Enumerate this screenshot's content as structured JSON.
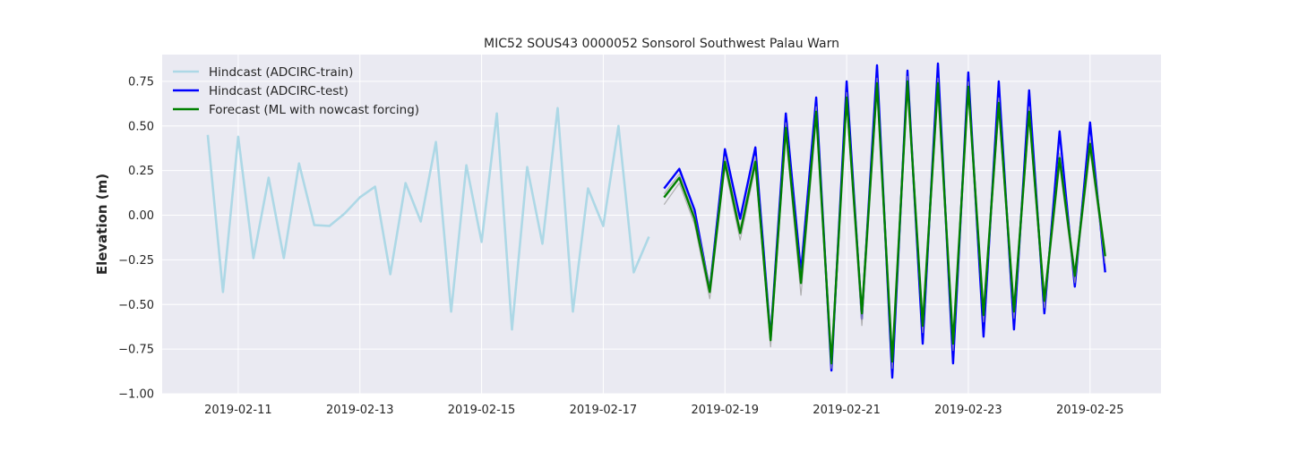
{
  "chart_data": {
    "type": "line",
    "title": "MIC52 SOUS43 0000052 Sonsorol Southwest Palau Warn",
    "xlabel": "",
    "ylabel": "Elevation (m)",
    "xlim": [
      "2019-02-09T18:00",
      "2019-02-26T04:00"
    ],
    "ylim": [
      -1.0,
      0.9
    ],
    "yticks": [
      -1.0,
      -0.75,
      -0.5,
      -0.25,
      0.0,
      0.25,
      0.5,
      0.75
    ],
    "ytick_labels": [
      "−1.00",
      "−0.75",
      "−0.50",
      "−0.25",
      "0.00",
      "0.25",
      "0.50",
      "0.75"
    ],
    "xticks": [
      "2019-02-11",
      "2019-02-13",
      "2019-02-15",
      "2019-02-17",
      "2019-02-19",
      "2019-02-21",
      "2019-02-23",
      "2019-02-25"
    ],
    "grid": true,
    "legend_position": "upper-left",
    "colors": {
      "background": "#eaeaf2",
      "grid": "#ffffff",
      "train": "#add8e6",
      "test": "#0000ff",
      "forecast": "#008000",
      "ensemble": "#a0a0a0"
    },
    "series": [
      {
        "name": "Hindcast (ADCIRC-train)",
        "color": "#add8e6",
        "x": [
          "2019-02-10T12:00",
          "2019-02-10T18:00",
          "2019-02-11T00:00",
          "2019-02-11T06:00",
          "2019-02-11T12:00",
          "2019-02-11T18:00",
          "2019-02-12T00:00",
          "2019-02-12T06:00",
          "2019-02-12T12:00",
          "2019-02-12T18:00",
          "2019-02-13T00:00",
          "2019-02-13T06:00",
          "2019-02-13T12:00",
          "2019-02-13T18:00",
          "2019-02-14T00:00",
          "2019-02-14T06:00",
          "2019-02-14T12:00",
          "2019-02-14T18:00",
          "2019-02-15T00:00",
          "2019-02-15T06:00",
          "2019-02-15T12:00",
          "2019-02-15T18:00",
          "2019-02-16T00:00",
          "2019-02-16T06:00",
          "2019-02-16T12:00",
          "2019-02-16T18:00",
          "2019-02-17T00:00",
          "2019-02-17T06:00",
          "2019-02-17T12:00",
          "2019-02-17T18:00"
        ],
        "values": [
          0.45,
          -0.43,
          0.44,
          -0.24,
          0.21,
          -0.24,
          0.29,
          -0.055,
          -0.06,
          0.01,
          0.1,
          0.16,
          -0.33,
          0.18,
          -0.035,
          0.41,
          -0.54,
          0.28,
          -0.15,
          0.57,
          -0.64,
          0.27,
          -0.16,
          0.6,
          -0.54,
          0.15,
          -0.06,
          0.5,
          -0.32,
          -0.12
        ]
      },
      {
        "name": "Hindcast (ADCIRC-test)",
        "color": "#0000ff",
        "x": [
          "2019-02-18T00:00",
          "2019-02-18T06:00",
          "2019-02-18T12:00",
          "2019-02-18T18:00",
          "2019-02-19T00:00",
          "2019-02-19T06:00",
          "2019-02-19T12:00",
          "2019-02-19T18:00",
          "2019-02-20T00:00",
          "2019-02-20T06:00",
          "2019-02-20T12:00",
          "2019-02-20T18:00",
          "2019-02-21T00:00",
          "2019-02-21T06:00",
          "2019-02-21T12:00",
          "2019-02-21T18:00",
          "2019-02-22T00:00",
          "2019-02-22T06:00",
          "2019-02-22T12:00",
          "2019-02-22T18:00",
          "2019-02-23T00:00",
          "2019-02-23T06:00",
          "2019-02-23T12:00",
          "2019-02-23T18:00",
          "2019-02-24T00:00",
          "2019-02-24T06:00",
          "2019-02-24T12:00",
          "2019-02-24T18:00",
          "2019-02-25T00:00",
          "2019-02-25T06:00"
        ],
        "values": [
          0.15,
          0.26,
          0.03,
          -0.42,
          0.37,
          -0.02,
          0.38,
          -0.69,
          0.57,
          -0.32,
          0.66,
          -0.87,
          0.75,
          -0.58,
          0.84,
          -0.91,
          0.81,
          -0.72,
          0.85,
          -0.83,
          0.8,
          -0.68,
          0.75,
          -0.64,
          0.7,
          -0.55,
          0.47,
          -0.4,
          0.52,
          -0.32
        ]
      },
      {
        "name": "Forecast (ML with nowcast forcing)",
        "color": "#008000",
        "x": [
          "2019-02-18T00:00",
          "2019-02-18T06:00",
          "2019-02-18T12:00",
          "2019-02-18T18:00",
          "2019-02-19T00:00",
          "2019-02-19T06:00",
          "2019-02-19T12:00",
          "2019-02-19T18:00",
          "2019-02-20T00:00",
          "2019-02-20T06:00",
          "2019-02-20T12:00",
          "2019-02-20T18:00",
          "2019-02-21T00:00",
          "2019-02-21T06:00",
          "2019-02-21T12:00",
          "2019-02-21T18:00",
          "2019-02-22T00:00",
          "2019-02-22T06:00",
          "2019-02-22T12:00",
          "2019-02-22T18:00",
          "2019-02-23T00:00",
          "2019-02-23T06:00",
          "2019-02-23T12:00",
          "2019-02-23T18:00",
          "2019-02-24T00:00",
          "2019-02-24T06:00",
          "2019-02-24T12:00",
          "2019-02-24T18:00",
          "2019-02-25T00:00",
          "2019-02-25T06:00"
        ],
        "values": [
          0.1,
          0.21,
          -0.02,
          -0.43,
          0.3,
          -0.1,
          0.3,
          -0.7,
          0.49,
          -0.38,
          0.58,
          -0.83,
          0.66,
          -0.55,
          0.74,
          -0.82,
          0.75,
          -0.62,
          0.74,
          -0.72,
          0.72,
          -0.56,
          0.63,
          -0.54,
          0.58,
          -0.48,
          0.32,
          -0.34,
          0.4,
          -0.23
        ]
      }
    ],
    "ensemble": {
      "color": "#a0a0a0",
      "lower": [
        0.06,
        0.18,
        -0.05,
        -0.47,
        0.27,
        -0.14,
        0.27,
        -0.74,
        0.45,
        -0.45,
        0.54,
        -0.86,
        0.62,
        -0.62,
        0.7,
        -0.86,
        0.71,
        -0.66,
        0.7,
        -0.76,
        0.68,
        -0.6,
        0.59,
        -0.58,
        0.54,
        -0.52,
        0.28,
        -0.38,
        0.36,
        -0.27
      ],
      "upper": [
        0.12,
        0.23,
        0.0,
        -0.4,
        0.33,
        -0.07,
        0.33,
        -0.67,
        0.52,
        -0.35,
        0.61,
        -0.8,
        0.69,
        -0.52,
        0.77,
        -0.79,
        0.78,
        -0.59,
        0.77,
        -0.69,
        0.75,
        -0.53,
        0.66,
        -0.51,
        0.61,
        -0.45,
        0.35,
        -0.31,
        0.43,
        -0.2
      ]
    }
  }
}
